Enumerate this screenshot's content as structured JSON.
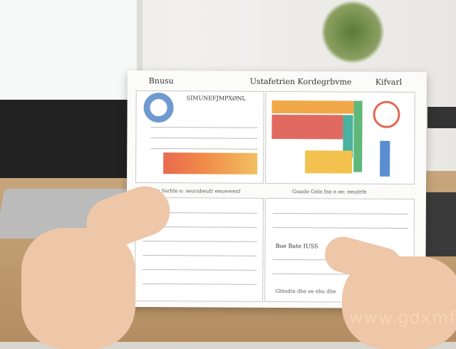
{
  "document": {
    "header_left": "Bnusu",
    "header_center": "Ustafetrien Kordegrbvme",
    "header_right": "Kifvarl",
    "panel_title": "SIMUNEFJMPXØNL",
    "section_row": "GFDsfrfe Ssrfde e: seurabeufr eeuwwenf",
    "section_row_right": "Goasle Gele fne e ee: eeudrfe",
    "lower_label": "Boe Bate IUSS",
    "bottom_row": "Gbtodte dhe ee ebu dhe"
  },
  "colors": {
    "orange": "#f0a848",
    "red": "#e05a50",
    "green": "#5fb87a",
    "blue": "#5a8ed0",
    "yellow": "#f2c14e"
  },
  "watermark": "www.gdxmfw.com"
}
